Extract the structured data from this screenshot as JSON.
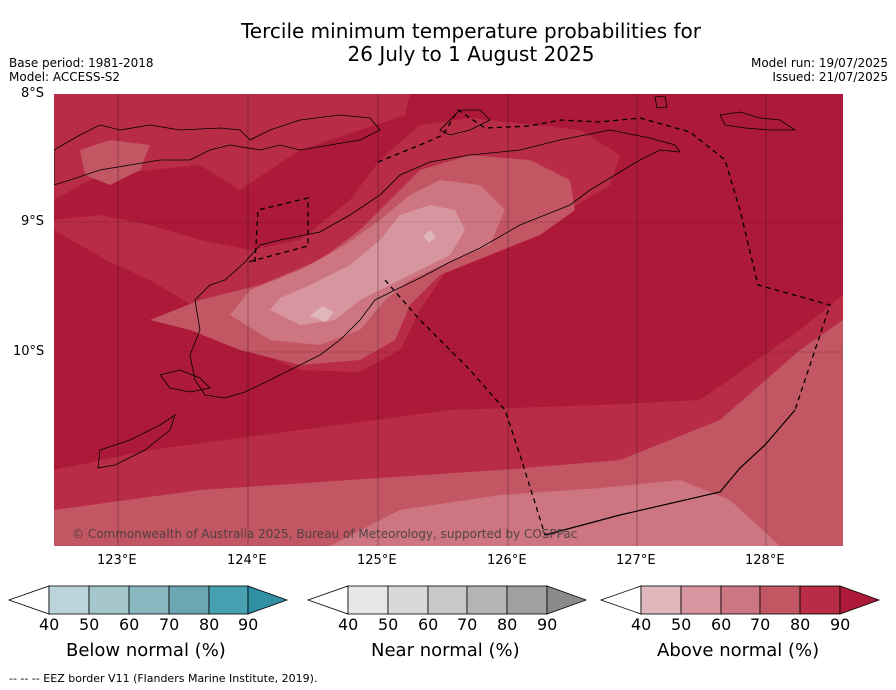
{
  "title_line1": "Tercile minimum temperature probabilities for",
  "title_line2": "26 July to 1 August 2025",
  "base_period": "Base period: 1981-2018",
  "model": "Model: ACCESS-S2",
  "model_run": "Model run: 19/07/2025",
  "issued": "Issued: 21/07/2025",
  "lat_labels": [
    "8°S",
    "9°S",
    "10°S"
  ],
  "lon_labels": [
    "123°E",
    "124°E",
    "125°E",
    "126°E",
    "127°E",
    "128°E"
  ],
  "copyright": "© Commonwealth of Australia 2025, Bureau of Meteorology, supported by COSPPac",
  "legends": {
    "below": {
      "label": "Below normal (%)",
      "ticks": [
        "40",
        "50",
        "60",
        "70",
        "80",
        "90"
      ],
      "colors": [
        "#ffffff",
        "#bcd3da",
        "#a5c6cd",
        "#8ab8c1",
        "#6ba7b3",
        "#46a0b0",
        "#2f8fa3"
      ]
    },
    "near": {
      "label": "Near normal (%)",
      "ticks": [
        "40",
        "50",
        "60",
        "70",
        "80",
        "90"
      ],
      "colors": [
        "#ffffff",
        "#e6e6e6",
        "#d8d8d8",
        "#c8c8c8",
        "#b4b4b4",
        "#a0a0a0",
        "#8a8a8a"
      ]
    },
    "above": {
      "label": "Above normal (%)",
      "ticks": [
        "40",
        "50",
        "60",
        "70",
        "80",
        "90"
      ],
      "colors": [
        "#ffffff",
        "#e0b6bd",
        "#d7959f",
        "#cd7580",
        "#c25663",
        "#b82c46",
        "#ad1a39"
      ]
    }
  },
  "footnote": "--  --  -- EEZ border V11 (Flanders Marine Institute, 2019)."
}
